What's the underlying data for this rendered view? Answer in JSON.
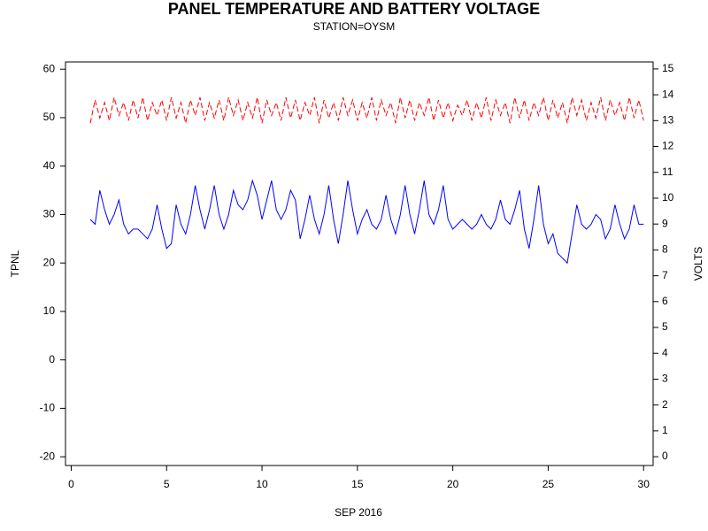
{
  "chart_data": {
    "type": "line",
    "title": "PANEL TEMPERATURE AND BATTERY VOLTAGE",
    "subtitle": "STATION=OYSM",
    "x_label": "SEP 2016",
    "y_label": "TPNL",
    "y2_label": "VOLTS",
    "xlim": [
      -0.3,
      30.5
    ],
    "xticks": [
      0,
      5,
      10,
      15,
      20,
      25,
      30
    ],
    "ylim": [
      -21.8,
      61.5
    ],
    "yticks": [
      -20,
      -10,
      0,
      10,
      20,
      30,
      40,
      50,
      60
    ],
    "y2lim": [
      -0.34,
      15.27
    ],
    "y2ticks": [
      0,
      1,
      2,
      3,
      4,
      5,
      6,
      7,
      8,
      9,
      10,
      11,
      12,
      13,
      14,
      15
    ],
    "x": [
      1,
      1.25,
      1.5,
      1.75,
      2,
      2.25,
      2.5,
      2.75,
      3,
      3.25,
      3.5,
      3.75,
      4,
      4.25,
      4.5,
      4.75,
      5,
      5.25,
      5.5,
      5.75,
      6,
      6.25,
      6.5,
      6.75,
      7,
      7.25,
      7.5,
      7.75,
      8,
      8.25,
      8.5,
      8.75,
      9,
      9.25,
      9.5,
      9.75,
      10,
      10.25,
      10.5,
      10.75,
      11,
      11.25,
      11.5,
      11.75,
      12,
      12.25,
      12.5,
      12.75,
      13,
      13.25,
      13.5,
      13.75,
      14,
      14.25,
      14.5,
      14.75,
      15,
      15.25,
      15.5,
      15.75,
      16,
      16.25,
      16.5,
      16.75,
      17,
      17.25,
      17.5,
      17.75,
      18,
      18.25,
      18.5,
      18.75,
      19,
      19.25,
      19.5,
      19.75,
      20,
      20.25,
      20.5,
      20.75,
      21,
      21.25,
      21.5,
      21.75,
      22,
      22.25,
      22.5,
      22.75,
      23,
      23.25,
      23.5,
      23.75,
      24,
      24.25,
      24.5,
      24.75,
      25,
      25.25,
      25.5,
      25.75,
      26,
      26.25,
      26.5,
      26.75,
      27,
      27.25,
      27.5,
      27.75,
      28,
      28.25,
      28.5,
      28.75,
      29,
      29.25,
      29.5,
      29.75,
      30
    ],
    "series": [
      {
        "name": "TPNL",
        "color": "#0000ff",
        "dashed": false,
        "values": [
          29,
          28,
          35,
          31,
          28,
          30,
          33,
          28,
          26,
          27,
          27,
          26,
          25,
          27,
          32,
          27,
          23,
          24,
          32,
          28,
          26,
          30,
          36,
          31,
          27,
          31,
          36,
          30,
          27,
          30,
          35,
          32,
          31,
          33,
          37,
          34,
          29,
          33,
          37,
          31,
          29,
          31,
          35,
          33,
          25,
          29,
          34,
          29,
          26,
          30,
          36,
          29,
          24,
          30,
          37,
          31,
          26,
          29,
          31,
          28,
          27,
          29,
          34,
          29,
          26,
          30,
          36,
          30,
          26,
          31,
          37,
          30,
          28,
          31,
          36,
          29,
          27,
          28,
          29,
          28,
          27,
          28,
          30,
          28,
          27,
          29,
          33,
          29,
          28,
          31,
          35,
          27,
          23,
          29,
          36,
          28,
          24,
          26,
          22,
          21,
          20,
          26,
          32,
          28,
          27,
          28,
          30,
          29,
          25,
          27,
          32,
          28,
          25,
          27,
          32,
          28,
          28
        ]
      },
      {
        "name": "VOLTS",
        "color": "#ff0000",
        "dashed": true,
        "axis": "y2",
        "values": [
          12.9,
          13.8,
          13.1,
          13.7,
          13.0,
          13.9,
          13.2,
          13.7,
          13.0,
          13.8,
          13.1,
          13.9,
          13.0,
          13.7,
          13.2,
          13.8,
          13.0,
          13.9,
          13.1,
          13.7,
          12.9,
          13.8,
          13.2,
          13.9,
          13.0,
          13.7,
          13.1,
          13.8,
          13.0,
          13.9,
          13.2,
          13.8,
          13.0,
          13.7,
          13.1,
          13.9,
          12.9,
          13.8,
          13.2,
          13.7,
          13.0,
          13.9,
          13.1,
          13.8,
          13.0,
          13.7,
          13.2,
          13.9,
          12.9,
          13.8,
          13.1,
          13.7,
          13.0,
          13.9,
          13.2,
          13.8,
          13.0,
          13.7,
          13.1,
          13.9,
          13.0,
          13.8,
          13.2,
          13.7,
          12.9,
          13.9,
          13.1,
          13.8,
          13.0,
          13.7,
          13.2,
          13.9,
          13.0,
          13.8,
          13.1,
          13.7,
          13.0,
          13.6,
          13.2,
          13.8,
          13.0,
          13.7,
          13.1,
          13.9,
          13.0,
          13.8,
          13.2,
          13.7,
          12.9,
          13.9,
          13.1,
          13.8,
          13.0,
          13.7,
          13.2,
          13.9,
          13.0,
          13.8,
          13.1,
          13.7,
          12.9,
          13.9,
          13.2,
          13.8,
          13.0,
          13.7,
          13.1,
          13.9,
          13.0,
          13.8,
          13.2,
          13.7,
          13.0,
          13.9,
          13.1,
          13.8,
          13.0
        ]
      }
    ]
  }
}
